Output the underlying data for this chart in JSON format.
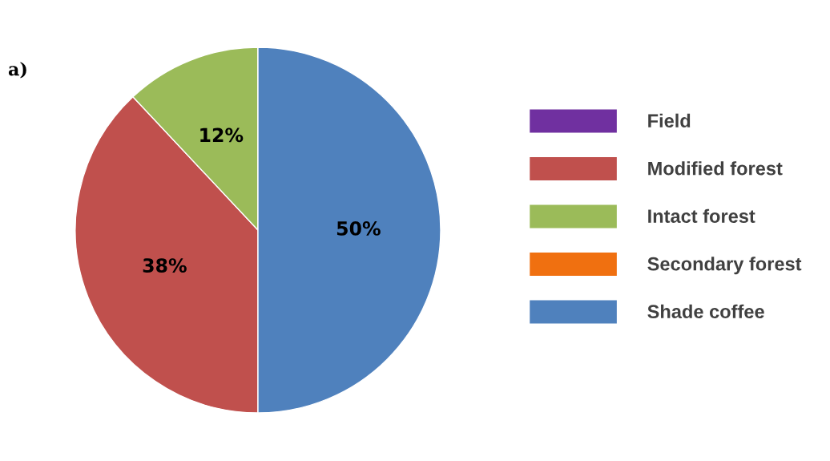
{
  "chart_data": {
    "type": "pie",
    "title": "a)",
    "categories": [
      "Field",
      "Modified forest",
      "Intact forest",
      "Secondary forest",
      "Shade coffee"
    ],
    "values": [
      0,
      38,
      12,
      0,
      50
    ],
    "value_labels": [
      null,
      "38%",
      "12%",
      null,
      "50%"
    ],
    "colors": [
      "#7030a0",
      "#c0504d",
      "#9bbb59",
      "#f07010",
      "#4f81bd"
    ],
    "legend": "right"
  }
}
